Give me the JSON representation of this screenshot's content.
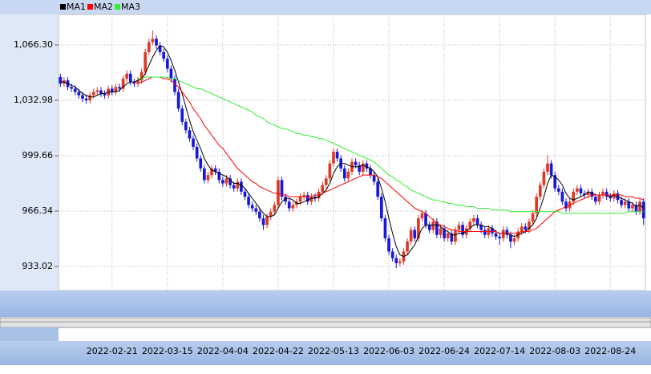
{
  "chart_data": {
    "type": "candlestick",
    "categories": [
      null,
      null,
      null,
      null,
      null,
      null,
      null,
      null,
      null,
      null,
      null,
      null,
      null,
      null,
      "2022-02-21",
      null,
      null,
      null,
      null,
      null,
      null,
      null,
      null,
      null,
      null,
      null,
      null,
      null,
      null,
      "2022-03-15",
      null,
      null,
      null,
      null,
      null,
      null,
      null,
      null,
      null,
      null,
      null,
      null,
      null,
      null,
      "2022-04-04",
      null,
      null,
      null,
      null,
      null,
      null,
      null,
      null,
      null,
      null,
      null,
      null,
      null,
      null,
      "2022-04-22",
      null,
      null,
      null,
      null,
      null,
      null,
      null,
      null,
      null,
      null,
      null,
      null,
      null,
      null,
      "2022-05-13",
      null,
      null,
      null,
      null,
      null,
      null,
      null,
      null,
      null,
      null,
      null,
      null,
      null,
      null,
      "2022-06-03",
      null,
      null,
      null,
      null,
      null,
      null,
      null,
      null,
      null,
      null,
      null,
      null,
      null,
      null,
      "2022-06-24",
      null,
      null,
      null,
      null,
      null,
      null,
      null,
      null,
      null,
      null,
      null,
      null,
      null,
      null,
      "2022-07-14",
      null,
      null,
      null,
      null,
      null,
      null,
      null,
      null,
      null,
      null,
      null,
      null,
      null,
      null,
      "2022-08-03",
      null,
      null,
      null,
      null,
      null,
      null,
      null,
      null,
      null,
      null,
      null,
      null,
      null,
      null,
      "2022-08-24",
      null,
      null,
      null,
      null,
      null,
      null,
      null,
      null,
      null
    ],
    "open": [
      1047,
      1043,
      1045,
      1041,
      1040,
      1038,
      1036,
      1034,
      1033,
      1036,
      1038,
      1039,
      1037,
      1036,
      1040,
      1038,
      1041,
      1040,
      1046,
      1049,
      1044,
      1043,
      1045,
      1050,
      1062,
      1068,
      1070,
      1066,
      1062,
      1058,
      1052,
      1046,
      1038,
      1028,
      1020,
      1015,
      1010,
      1005,
      998,
      992,
      985,
      988,
      992,
      990,
      985,
      983,
      986,
      982,
      980,
      984,
      978,
      975,
      970,
      968,
      966,
      962,
      958,
      963,
      966,
      970,
      985,
      975,
      972,
      968,
      970,
      972,
      975,
      976,
      972,
      975,
      974,
      978,
      982,
      986,
      995,
      1002,
      998,
      992,
      986,
      990,
      996,
      994,
      990,
      995,
      992,
      988,
      984,
      975,
      962,
      950,
      942,
      938,
      935,
      936,
      942,
      948,
      955,
      950,
      962,
      965,
      958,
      955,
      960,
      952,
      956,
      950,
      953,
      948,
      955,
      958,
      952,
      956,
      960,
      962,
      958,
      955,
      952,
      956,
      953,
      951,
      950,
      955,
      952,
      948,
      950,
      954,
      957,
      955,
      960,
      965,
      975,
      982,
      990,
      995,
      988,
      980,
      978,
      972,
      968,
      972,
      978,
      980,
      977,
      976,
      978,
      975,
      972,
      976,
      978,
      975,
      974,
      977,
      973,
      970,
      972,
      968,
      970,
      966,
      972
    ],
    "high": [
      1049,
      1047,
      1047,
      1043,
      1042,
      1040,
      1038,
      1036,
      1038,
      1040,
      1041,
      1041,
      1039,
      1042,
      1042,
      1043,
      1043,
      1048,
      1051,
      1051,
      1046,
      1047,
      1052,
      1064,
      1070,
      1075,
      1072,
      1068,
      1064,
      1060,
      1054,
      1048,
      1040,
      1030,
      1022,
      1017,
      1012,
      1007,
      1000,
      994,
      990,
      994,
      994,
      992,
      987,
      988,
      988,
      984,
      986,
      986,
      980,
      977,
      972,
      970,
      968,
      964,
      965,
      968,
      972,
      987,
      987,
      977,
      974,
      972,
      974,
      977,
      978,
      978,
      977,
      977,
      980,
      984,
      988,
      997,
      1004,
      1004,
      1000,
      994,
      992,
      998,
      998,
      996,
      997,
      997,
      994,
      990,
      986,
      977,
      964,
      952,
      944,
      940,
      938,
      944,
      950,
      957,
      957,
      964,
      967,
      967,
      960,
      962,
      962,
      958,
      958,
      955,
      955,
      957,
      960,
      960,
      958,
      962,
      964,
      964,
      960,
      957,
      958,
      958,
      955,
      953,
      957,
      957,
      954,
      952,
      956,
      959,
      959,
      962,
      967,
      977,
      984,
      992,
      1000,
      997,
      990,
      982,
      980,
      974,
      974,
      980,
      982,
      982,
      979,
      980,
      980,
      977,
      978,
      980,
      980,
      977,
      979,
      979,
      975,
      974,
      974,
      972,
      972,
      974,
      974
    ],
    "low": [
      1041,
      1041,
      1039,
      1038,
      1036,
      1034,
      1032,
      1031,
      1031,
      1034,
      1036,
      1035,
      1034,
      1034,
      1036,
      1036,
      1038,
      1038,
      1044,
      1042,
      1041,
      1041,
      1043,
      1048,
      1060,
      1066,
      1064,
      1060,
      1056,
      1050,
      1044,
      1036,
      1026,
      1018,
      1013,
      1008,
      1003,
      996,
      990,
      983,
      983,
      986,
      988,
      983,
      981,
      981,
      980,
      978,
      978,
      976,
      973,
      968,
      966,
      964,
      960,
      955,
      956,
      961,
      964,
      968,
      973,
      970,
      966,
      966,
      968,
      970,
      973,
      970,
      970,
      972,
      972,
      976,
      980,
      984,
      993,
      996,
      990,
      984,
      984,
      988,
      992,
      988,
      988,
      990,
      986,
      982,
      973,
      960,
      948,
      940,
      936,
      932,
      933,
      934,
      940,
      946,
      948,
      948,
      960,
      956,
      953,
      953,
      950,
      950,
      948,
      948,
      946,
      946,
      953,
      950,
      950,
      954,
      958,
      956,
      953,
      950,
      950,
      951,
      949,
      946,
      948,
      950,
      944,
      946,
      948,
      952,
      953,
      953,
      958,
      963,
      973,
      980,
      988,
      986,
      978,
      976,
      970,
      966,
      966,
      970,
      976,
      975,
      974,
      974,
      973,
      970,
      970,
      974,
      973,
      972,
      972,
      971,
      968,
      968,
      966,
      966,
      964,
      964,
      958
    ],
    "close": [
      1043,
      1045,
      1041,
      1040,
      1038,
      1036,
      1034,
      1033,
      1036,
      1038,
      1039,
      1037,
      1036,
      1040,
      1038,
      1041,
      1040,
      1046,
      1049,
      1044,
      1043,
      1045,
      1050,
      1062,
      1068,
      1070,
      1066,
      1062,
      1058,
      1052,
      1046,
      1038,
      1028,
      1020,
      1015,
      1010,
      1005,
      998,
      992,
      985,
      988,
      992,
      990,
      985,
      983,
      986,
      982,
      980,
      984,
      978,
      975,
      970,
      968,
      966,
      962,
      958,
      963,
      966,
      970,
      985,
      975,
      972,
      968,
      970,
      972,
      975,
      976,
      972,
      975,
      974,
      978,
      982,
      986,
      995,
      1002,
      998,
      992,
      986,
      990,
      996,
      994,
      990,
      995,
      992,
      988,
      984,
      975,
      962,
      950,
      942,
      938,
      935,
      936,
      942,
      948,
      955,
      950,
      962,
      965,
      958,
      955,
      960,
      952,
      956,
      950,
      953,
      948,
      955,
      958,
      952,
      956,
      960,
      962,
      958,
      955,
      952,
      956,
      953,
      951,
      950,
      955,
      952,
      948,
      950,
      954,
      957,
      955,
      960,
      965,
      975,
      982,
      990,
      995,
      988,
      980,
      978,
      972,
      968,
      972,
      978,
      980,
      977,
      976,
      978,
      975,
      972,
      976,
      978,
      975,
      974,
      977,
      973,
      970,
      972,
      968,
      970,
      966,
      972,
      962
    ],
    "up_color": "#dc3a24",
    "down_color": "#1818d8",
    "series": [
      {
        "name": "MA1",
        "color": "#000000",
        "values": [
          1044,
          1044,
          1043,
          1042,
          1041,
          1039,
          1037,
          1036,
          1035,
          1035,
          1036,
          1037,
          1037,
          1038,
          1038,
          1038,
          1039,
          1041,
          1043,
          1044,
          1044,
          1045,
          1046,
          1049,
          1054,
          1059,
          1063,
          1066,
          1065,
          1062,
          1057,
          1051,
          1044,
          1037,
          1029,
          1021,
          1014,
          1009,
          1004,
          998,
          994,
          991,
          990,
          989,
          988,
          987,
          985,
          983,
          983,
          982,
          980,
          977,
          974,
          971,
          968,
          965,
          963,
          963,
          964,
          968,
          972,
          974,
          974,
          973,
          971,
          971,
          972,
          973,
          974,
          974,
          975,
          977,
          979,
          983,
          989,
          993,
          995,
          995,
          994,
          993,
          993,
          993,
          994,
          993,
          992,
          990,
          987,
          980,
          972,
          962,
          953,
          945,
          940,
          939,
          940,
          943,
          946,
          951,
          956,
          958,
          958,
          958,
          958,
          957,
          955,
          954,
          952,
          952,
          953,
          953,
          954,
          956,
          958,
          958,
          958,
          957,
          957,
          956,
          954,
          953,
          953,
          953,
          952,
          951,
          952,
          953,
          954,
          956,
          958,
          962,
          968,
          975,
          983,
          988,
          987,
          985,
          982,
          977,
          974,
          973,
          974,
          975,
          976,
          978,
          977,
          976,
          976,
          976,
          976,
          975,
          976,
          975,
          974,
          973,
          972,
          971,
          969,
          970,
          968
        ]
      },
      {
        "name": "MA2",
        "color": "#ff0000",
        "values": [
          null,
          null,
          null,
          null,
          null,
          null,
          null,
          null,
          null,
          null,
          null,
          null,
          null,
          null,
          null,
          null,
          null,
          null,
          null,
          null,
          null,
          1043,
          1044,
          1045,
          1046,
          1047,
          1047,
          1047,
          1046,
          1046,
          1045,
          1043,
          1041,
          1038,
          1035,
          1032,
          1028,
          1025,
          1022,
          1018,
          1015,
          1012,
          1009,
          1006,
          1004,
          1001,
          998,
          995,
          992,
          990,
          988,
          986,
          984,
          983,
          981,
          980,
          979,
          978,
          977,
          977,
          976,
          976,
          975,
          975,
          975,
          975,
          975,
          975,
          975,
          976,
          976,
          977,
          978,
          979,
          980,
          981,
          982,
          983,
          984,
          985,
          986,
          987,
          988,
          988,
          988,
          988,
          987,
          986,
          984,
          982,
          980,
          978,
          976,
          974,
          972,
          970,
          968,
          967,
          966,
          965,
          963,
          961,
          959,
          958,
          957,
          956,
          955,
          955,
          954,
          954,
          954,
          954,
          954,
          954,
          954,
          954,
          954,
          954,
          954,
          953,
          953,
          953,
          953,
          953,
          953,
          954,
          954,
          954,
          955,
          956,
          958,
          960,
          962,
          964,
          966,
          967,
          968,
          969,
          970,
          971,
          972,
          973,
          974,
          975,
          976,
          976,
          976,
          976,
          976,
          976,
          976,
          976,
          976,
          975,
          975,
          975,
          974,
          974,
          973
        ]
      },
      {
        "name": "MA3",
        "color": "#33ee33",
        "values": [
          null,
          null,
          null,
          null,
          null,
          null,
          null,
          null,
          null,
          null,
          null,
          null,
          null,
          null,
          null,
          null,
          null,
          null,
          null,
          null,
          null,
          1046,
          1046,
          1047,
          1047,
          1047,
          1047,
          1047,
          1047,
          1047,
          1046,
          1046,
          1045,
          1044,
          1043,
          1042,
          1041,
          1040,
          1040,
          1039,
          1038,
          1037,
          1036,
          1035,
          1034,
          1033,
          1032,
          1031,
          1030,
          1029,
          1028,
          1027,
          1026,
          1024,
          1023,
          1022,
          1020,
          1019,
          1018,
          1017,
          1016,
          1016,
          1015,
          1014,
          1013,
          1013,
          1012,
          1012,
          1011,
          1011,
          1010,
          1010,
          1009,
          1008,
          1007,
          1006,
          1005,
          1004,
          1003,
          1002,
          1001,
          1000,
          999,
          998,
          997,
          996,
          994,
          992,
          990,
          988,
          987,
          985,
          984,
          982,
          981,
          979,
          978,
          977,
          976,
          975,
          974,
          973,
          973,
          972,
          972,
          971,
          971,
          970,
          970,
          970,
          969,
          969,
          969,
          968,
          968,
          968,
          968,
          967,
          967,
          967,
          967,
          967,
          966,
          966,
          966,
          966,
          966,
          966,
          966,
          966,
          966,
          966,
          966,
          966,
          966,
          966,
          965,
          965,
          965,
          965,
          965,
          965,
          965,
          965,
          965,
          965,
          965,
          965,
          965,
          965,
          965,
          965,
          965,
          965,
          966,
          966,
          966,
          966,
          966
        ]
      }
    ],
    "ylim": [
      918.53,
      1084.65
    ],
    "yticks": [
      933.02,
      966.34,
      999.66,
      {
        "value": 1032.98,
        "label": "1,032.98"
      },
      {
        "value": 1066.3,
        "label": "1,066.30"
      }
    ],
    "grid": true
  }
}
